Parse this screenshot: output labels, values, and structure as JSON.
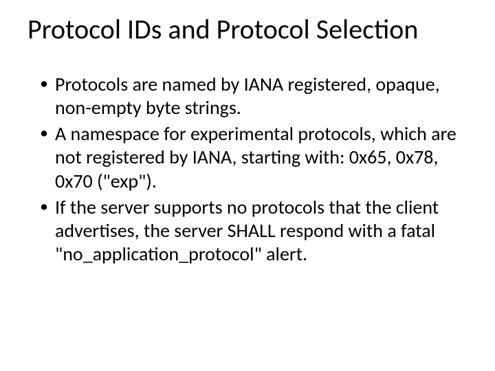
{
  "slide": {
    "title": "Protocol IDs and Protocol Selection",
    "bullets": [
      "Protocols are named by IANA registered, opaque, non-empty byte strings.",
      "A namespace for experimental protocols, which are not registered by IANA, starting with: 0x65, 0x78, 0x70 (\"exp\").",
      "If the server supports no protocols that the client advertises, the server SHALL respond with a fatal \"no_application_protocol\" alert."
    ]
  },
  "style": {
    "background_color": "#ffffff",
    "text_color": "#000000",
    "title_fontsize": 40,
    "body_fontsize": 28,
    "font_family": "Calibri"
  }
}
